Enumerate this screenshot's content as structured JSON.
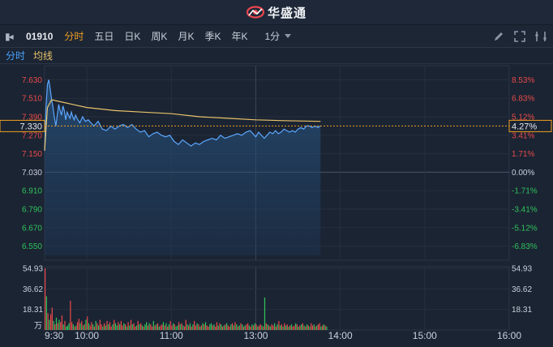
{
  "app": {
    "brand": "华盛通"
  },
  "toolbar": {
    "back_icon": "back-arrow-icon",
    "stock_code": "01910",
    "tabs": [
      {
        "label": "分时",
        "active": true
      },
      {
        "label": "五日",
        "active": false
      },
      {
        "label": "日K",
        "active": false
      },
      {
        "label": "周K",
        "active": false
      },
      {
        "label": "月K",
        "active": false
      },
      {
        "label": "季K",
        "active": false
      },
      {
        "label": "年K",
        "active": false
      }
    ],
    "period_select": "1分",
    "right_icons": [
      "pencil-icon",
      "fullscreen-icon",
      "settings-icon"
    ]
  },
  "legend": {
    "price_label": "分时",
    "avg_label": "均线"
  },
  "colors": {
    "up": "#e84a4a",
    "down": "#2fc25b",
    "price_line": "#5ba7ff",
    "avg_line": "#e8c36a",
    "accent": "#f0a021",
    "bg": "#1b2433"
  },
  "chart_data": {
    "type": "line",
    "prev_close": 7.03,
    "y_ticks": [
      "7.630",
      "7.510",
      "7.390",
      "7.270",
      "7.150",
      "7.030",
      "6.910",
      "6.790",
      "6.670",
      "6.550"
    ],
    "pct_ticks": [
      "8.53%",
      "6.83%",
      "5.12%",
      "3.41%",
      "1.71%",
      "0.00%",
      "-1.71%",
      "-3.41%",
      "-5.12%",
      "-6.83%"
    ],
    "ylim": [
      6.49,
      7.69
    ],
    "current_price": "7.330",
    "current_pct": "4.27%",
    "x_labels": [
      "9:30",
      "10:00",
      "11:00",
      "13:00",
      "14:00",
      "15:00",
      "16:00"
    ],
    "x_minutes": [
      0,
      30,
      90,
      150,
      210,
      270,
      330
    ],
    "x_total": 330,
    "series": [
      {
        "type": "price",
        "points": [
          [
            0,
            7.17
          ],
          [
            1,
            7.45
          ],
          [
            2,
            7.6
          ],
          [
            3,
            7.63
          ],
          [
            4,
            7.57
          ],
          [
            5,
            7.5
          ],
          [
            6,
            7.45
          ],
          [
            7,
            7.38
          ],
          [
            8,
            7.33
          ],
          [
            9,
            7.4
          ],
          [
            10,
            7.47
          ],
          [
            11,
            7.43
          ],
          [
            12,
            7.4
          ],
          [
            13,
            7.46
          ],
          [
            14,
            7.43
          ],
          [
            15,
            7.37
          ],
          [
            16,
            7.42
          ],
          [
            17,
            7.4
          ],
          [
            18,
            7.38
          ],
          [
            19,
            7.42
          ],
          [
            20,
            7.39
          ],
          [
            21,
            7.37
          ],
          [
            22,
            7.4
          ],
          [
            23,
            7.38
          ],
          [
            25,
            7.35
          ],
          [
            27,
            7.39
          ],
          [
            29,
            7.36
          ],
          [
            31,
            7.37
          ],
          [
            33,
            7.35
          ],
          [
            35,
            7.33
          ],
          [
            38,
            7.36
          ],
          [
            41,
            7.31
          ],
          [
            44,
            7.3
          ],
          [
            47,
            7.33
          ],
          [
            50,
            7.31
          ],
          [
            53,
            7.33
          ],
          [
            56,
            7.34
          ],
          [
            59,
            7.32
          ],
          [
            62,
            7.34
          ],
          [
            65,
            7.31
          ],
          [
            68,
            7.29
          ],
          [
            71,
            7.3
          ],
          [
            74,
            7.26
          ],
          [
            77,
            7.28
          ],
          [
            80,
            7.29
          ],
          [
            83,
            7.27
          ],
          [
            86,
            7.26
          ],
          [
            89,
            7.27
          ],
          [
            92,
            7.23
          ],
          [
            95,
            7.21
          ],
          [
            98,
            7.24
          ],
          [
            101,
            7.22
          ],
          [
            104,
            7.2
          ],
          [
            107,
            7.22
          ],
          [
            110,
            7.21
          ],
          [
            113,
            7.23
          ],
          [
            116,
            7.24
          ],
          [
            119,
            7.25
          ],
          [
            122,
            7.24
          ],
          [
            125,
            7.27
          ],
          [
            128,
            7.25
          ],
          [
            131,
            7.26
          ],
          [
            134,
            7.27
          ],
          [
            137,
            7.28
          ],
          [
            140,
            7.27
          ],
          [
            143,
            7.29
          ],
          [
            146,
            7.3
          ],
          [
            149,
            7.27
          ],
          [
            150,
            7.26
          ],
          [
            152,
            7.29
          ],
          [
            154,
            7.27
          ],
          [
            156,
            7.25
          ],
          [
            158,
            7.27
          ],
          [
            160,
            7.29
          ],
          [
            162,
            7.28
          ],
          [
            164,
            7.3
          ],
          [
            166,
            7.28
          ],
          [
            168,
            7.29
          ],
          [
            170,
            7.31
          ],
          [
            172,
            7.3
          ],
          [
            174,
            7.29
          ],
          [
            176,
            7.3
          ],
          [
            178,
            7.29
          ],
          [
            180,
            7.31
          ],
          [
            182,
            7.32
          ],
          [
            184,
            7.31
          ],
          [
            186,
            7.33
          ],
          [
            188,
            7.33
          ],
          [
            190,
            7.32
          ],
          [
            192,
            7.33
          ],
          [
            194,
            7.32
          ],
          [
            196,
            7.33
          ]
        ]
      },
      {
        "type": "average",
        "points": [
          [
            0,
            7.17
          ],
          [
            2,
            7.45
          ],
          [
            5,
            7.5
          ],
          [
            10,
            7.49
          ],
          [
            20,
            7.47
          ],
          [
            30,
            7.45
          ],
          [
            50,
            7.43
          ],
          [
            70,
            7.42
          ],
          [
            90,
            7.41
          ],
          [
            110,
            7.39
          ],
          [
            130,
            7.38
          ],
          [
            150,
            7.37
          ],
          [
            170,
            7.365
          ],
          [
            196,
            7.36
          ]
        ]
      }
    ],
    "volume": {
      "y_ticks": [
        "54.93",
        "36.62",
        "18.31"
      ],
      "unit": "万",
      "max": 54.93,
      "bars": [
        55,
        30,
        15,
        9,
        14,
        20,
        8,
        5,
        11,
        6,
        9,
        7,
        13,
        5,
        8,
        3,
        4,
        6,
        26,
        7,
        5,
        3,
        4,
        7,
        10,
        6,
        8,
        4,
        5,
        9,
        12,
        6,
        4,
        7,
        5,
        3,
        8,
        6,
        4,
        9,
        5,
        3,
        6,
        4,
        8,
        5,
        7,
        3,
        5,
        9,
        6,
        4,
        7,
        5,
        8,
        4,
        6,
        5,
        3,
        7,
        4,
        9,
        5,
        6,
        3,
        4,
        8,
        5,
        6,
        4,
        3,
        5,
        7,
        4,
        6,
        5,
        3,
        8,
        4,
        5,
        6,
        3,
        4,
        5,
        7,
        4,
        6,
        3,
        5,
        8,
        4,
        6,
        5,
        3,
        4,
        7,
        5,
        6,
        4,
        3,
        9,
        5,
        4,
        6,
        3,
        5,
        8,
        4,
        6,
        5,
        3,
        4,
        6,
        5,
        7,
        4,
        3,
        5,
        6,
        4,
        5,
        3,
        7,
        4,
        6,
        5,
        3,
        4,
        5,
        6,
        4,
        3,
        5,
        6,
        4,
        7,
        5,
        3,
        4,
        6,
        5,
        3,
        4,
        5,
        6,
        4,
        3,
        5,
        4,
        6,
        5,
        3,
        4,
        5,
        4,
        3,
        29,
        6,
        5,
        4,
        3,
        5,
        4,
        6,
        3,
        5,
        8,
        4,
        5,
        3,
        6,
        4,
        5,
        3,
        4,
        5,
        3,
        4,
        6,
        5,
        3,
        4,
        5,
        6,
        4,
        3,
        5,
        4,
        3,
        6,
        4,
        5,
        3,
        4,
        5,
        6,
        3,
        4,
        5,
        4,
        3
      ],
      "directions": "rgrgrrgrgrgrrgrgggrrgrgrrgrgrgrgrrgrgrgrrgrgrgrrgrggrgrrgrgrgrgrrgrgrgrggrgrrgrgrgrrgrgrgrrgrggrgrgrrgrgrgrrgrgrgrgrrggrgrrgrgrgrgrrgrgrgrgrgrgrrgrgrgrgrrgrgrgrgrrgrgrgrgrgrgrgrrgrgrgrgrgrgr"
    }
  }
}
